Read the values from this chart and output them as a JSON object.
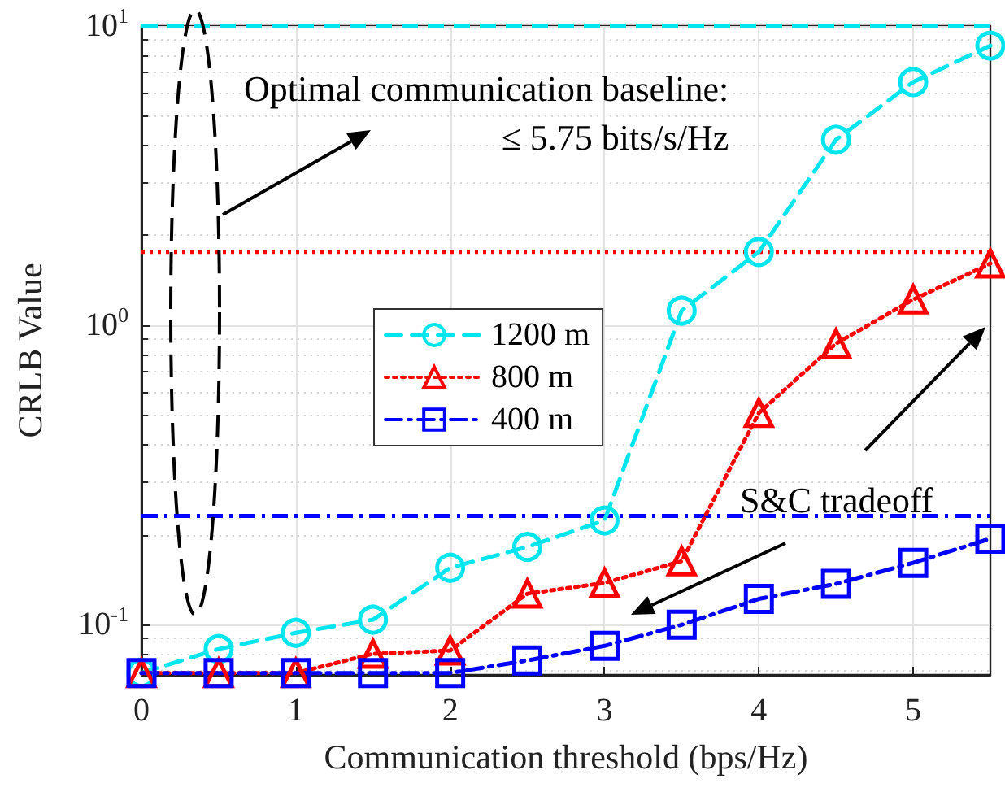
{
  "chart_data": {
    "type": "line",
    "xlabel": "Communication threshold (bps/Hz)",
    "ylabel": "CRLB Value",
    "x": [
      0,
      0.5,
      1,
      1.5,
      2,
      2.5,
      3,
      3.5,
      4,
      4.5,
      5,
      5.5
    ],
    "series": [
      {
        "name": "1200 m",
        "color": "#00e5ee",
        "marker": "circle",
        "line_style": "dashed",
        "values": [
          0.069,
          0.083,
          0.094,
          0.104,
          0.155,
          0.182,
          0.223,
          1.12,
          1.76,
          4.17,
          6.5,
          8.6
        ]
      },
      {
        "name": "800 m",
        "color": "#ff0000",
        "marker": "triangle",
        "line_style": "dotted",
        "values": [
          0.069,
          0.069,
          0.069,
          0.08,
          0.082,
          0.127,
          0.138,
          0.163,
          0.51,
          0.87,
          1.22,
          1.61
        ]
      },
      {
        "name": "400 m",
        "color": "#0000ff",
        "marker": "square",
        "line_style": "dashdot",
        "values": [
          0.069,
          0.069,
          0.069,
          0.069,
          0.069,
          0.076,
          0.085,
          0.1,
          0.122,
          0.137,
          0.161,
          0.194
        ]
      }
    ],
    "ref_lines": [
      {
        "axis": "y",
        "value": 10,
        "color": "#00e5ee",
        "line_style": "dashed"
      },
      {
        "axis": "y",
        "value": 1.76,
        "color": "#ff0000",
        "line_style": "dotted"
      },
      {
        "axis": "y",
        "value": 0.231,
        "color": "#0000ff",
        "line_style": "dashdot"
      }
    ],
    "annotations": [
      "Optimal communication baseline:\n≤ 5.75 bits/s/Hz",
      "S&C tradeoff"
    ],
    "log": "y",
    "xlim": [
      0,
      5.5
    ],
    "ylim": [
      0.068,
      10
    ],
    "xticks": [
      0,
      1,
      2,
      3,
      4,
      5
    ],
    "yticks": [
      {
        "value": 0.1,
        "label": "10$^{-1}$"
      },
      {
        "value": 1,
        "label": "10$^{0}$"
      },
      {
        "value": 10,
        "label": "10$^{1}$"
      }
    ],
    "grid": true,
    "legend": "center"
  }
}
